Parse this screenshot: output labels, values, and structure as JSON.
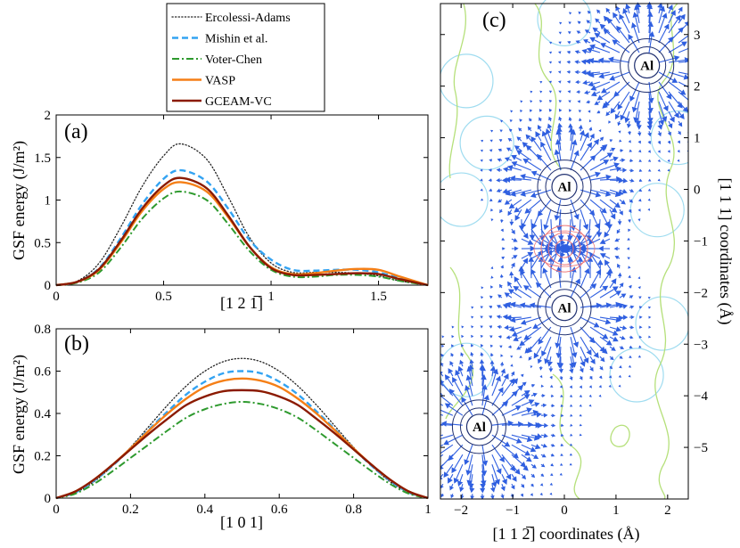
{
  "colors": {
    "ercolessi": "#222222",
    "mishin": "#33a3f2",
    "voter": "#2e9a2e",
    "vasp": "#f57f17",
    "gceam": "#8b1a00",
    "arrow": "#2f5fe0",
    "contour_green": "#b5e07a",
    "contour_cyan": "#9fdcf0",
    "contour_red": "#ee7777",
    "ring": "#203070"
  },
  "legend": {
    "entries": [
      {
        "key": "ercolessi",
        "label": "Ercolessi-Adams",
        "style": "dotted"
      },
      {
        "key": "mishin",
        "label": "Mishin et al.",
        "style": "dashed"
      },
      {
        "key": "voter",
        "label": "Voter-Chen",
        "style": "dashdot"
      },
      {
        "key": "vasp",
        "label": "VASP",
        "style": "solid"
      },
      {
        "key": "gceam",
        "label": "GCEAM-VC",
        "style": "solid"
      }
    ]
  },
  "chart_data": [
    {
      "panel": "(a)",
      "type": "line",
      "xlabel": "[1 2 1̅]",
      "ylabel": "GSF energy (J/m²)",
      "xlim": [
        0,
        1.73
      ],
      "ylim": [
        0,
        2
      ],
      "xticks": [
        0,
        0.5,
        1,
        1.5
      ],
      "xtick_labels": [
        "0",
        "0.5",
        "1",
        "1.5"
      ],
      "yticks": [
        0,
        0.5,
        1,
        1.5,
        2
      ],
      "ytick_labels": [
        "0",
        "0.5",
        "1",
        "1.5",
        "2"
      ],
      "x": [
        0,
        0.1,
        0.2,
        0.3,
        0.4,
        0.5,
        0.58,
        0.7,
        0.8,
        0.9,
        1.0,
        1.1,
        1.2,
        1.3,
        1.4,
        1.5,
        1.6,
        1.73
      ],
      "series": [
        {
          "name": "Ercolessi-Adams",
          "key": "ercolessi",
          "values": [
            0,
            0.05,
            0.26,
            0.68,
            1.16,
            1.52,
            1.66,
            1.48,
            1.04,
            0.56,
            0.26,
            0.15,
            0.15,
            0.15,
            0.14,
            0.11,
            0.05,
            0
          ]
        },
        {
          "name": "Mishin et al.",
          "key": "mishin",
          "values": [
            0,
            0.04,
            0.2,
            0.55,
            0.95,
            1.25,
            1.35,
            1.22,
            0.9,
            0.53,
            0.3,
            0.18,
            0.17,
            0.18,
            0.18,
            0.15,
            0.08,
            0
          ]
        },
        {
          "name": "Voter-Chen",
          "key": "voter",
          "values": [
            0,
            0.03,
            0.15,
            0.44,
            0.78,
            1.02,
            1.1,
            1.0,
            0.72,
            0.4,
            0.18,
            0.1,
            0.1,
            0.12,
            0.12,
            0.1,
            0.05,
            0
          ]
        },
        {
          "name": "VASP",
          "key": "vasp",
          "values": [
            0,
            0.04,
            0.18,
            0.5,
            0.87,
            1.13,
            1.21,
            1.1,
            0.8,
            0.45,
            0.21,
            0.13,
            0.14,
            0.17,
            0.19,
            0.18,
            0.1,
            0
          ]
        },
        {
          "name": "GCEAM-VC",
          "key": "gceam",
          "values": [
            0,
            0.04,
            0.19,
            0.52,
            0.9,
            1.17,
            1.26,
            1.14,
            0.82,
            0.45,
            0.2,
            0.12,
            0.12,
            0.13,
            0.14,
            0.13,
            0.07,
            0
          ]
        }
      ]
    },
    {
      "panel": "(b)",
      "type": "line",
      "xlabel": "[1 0 1]",
      "ylabel": "GSF energy (J/m²)",
      "xlim": [
        0,
        1
      ],
      "ylim": [
        0,
        0.8
      ],
      "xticks": [
        0,
        0.2,
        0.4,
        0.6,
        0.8,
        1
      ],
      "xtick_labels": [
        "0",
        "0.2",
        "0.4",
        "0.6",
        "0.8",
        "1"
      ],
      "yticks": [
        0,
        0.2,
        0.4,
        0.6,
        0.8
      ],
      "ytick_labels": [
        "0",
        "0.2",
        "0.4",
        "0.6",
        "0.8"
      ],
      "x": [
        0,
        0.05,
        0.1,
        0.15,
        0.2,
        0.25,
        0.3,
        0.35,
        0.4,
        0.45,
        0.5,
        0.55,
        0.6,
        0.65,
        0.7,
        0.75,
        0.8,
        0.85,
        0.9,
        0.95,
        1.0
      ],
      "series": [
        {
          "name": "Ercolessi-Adams",
          "key": "ercolessi",
          "values": [
            0,
            0.025,
            0.075,
            0.15,
            0.24,
            0.34,
            0.44,
            0.53,
            0.6,
            0.645,
            0.66,
            0.645,
            0.6,
            0.53,
            0.44,
            0.34,
            0.24,
            0.15,
            0.075,
            0.025,
            0
          ]
        },
        {
          "name": "Mishin et al.",
          "key": "mishin",
          "values": [
            0,
            0.025,
            0.08,
            0.15,
            0.235,
            0.325,
            0.41,
            0.49,
            0.55,
            0.59,
            0.6,
            0.59,
            0.55,
            0.49,
            0.41,
            0.325,
            0.235,
            0.15,
            0.08,
            0.025,
            0
          ]
        },
        {
          "name": "Voter-Chen",
          "key": "voter",
          "values": [
            0,
            0.02,
            0.065,
            0.125,
            0.19,
            0.255,
            0.32,
            0.38,
            0.42,
            0.445,
            0.455,
            0.445,
            0.42,
            0.38,
            0.32,
            0.255,
            0.19,
            0.125,
            0.065,
            0.02,
            0
          ]
        },
        {
          "name": "VASP",
          "key": "vasp",
          "values": [
            0,
            0.03,
            0.085,
            0.155,
            0.235,
            0.32,
            0.4,
            0.47,
            0.525,
            0.555,
            0.565,
            0.555,
            0.525,
            0.47,
            0.4,
            0.32,
            0.235,
            0.155,
            0.085,
            0.03,
            0
          ]
        },
        {
          "name": "GCEAM-VC",
          "key": "gceam",
          "values": [
            0,
            0.03,
            0.085,
            0.155,
            0.23,
            0.305,
            0.375,
            0.44,
            0.48,
            0.505,
            0.51,
            0.505,
            0.48,
            0.44,
            0.375,
            0.305,
            0.23,
            0.155,
            0.085,
            0.03,
            0
          ]
        }
      ]
    },
    {
      "panel": "(c)",
      "type": "vector-field",
      "xlabel": "[1 1 2̅] coordinates (Å)",
      "ylabel": "[1 1 1] coordinates (Å)",
      "xlim": [
        -2.4,
        2.4
      ],
      "ylim": [
        -6.0,
        3.6
      ],
      "xticks": [
        -2,
        -1,
        0,
        1,
        2
      ],
      "xtick_labels": [
        "−2",
        "−1",
        "0",
        "1",
        "2"
      ],
      "yticks": [
        3,
        2,
        1,
        0,
        -1,
        -2,
        -3,
        -4,
        -5
      ],
      "ytick_labels": [
        "3",
        "2",
        "1",
        "0",
        "−1",
        "−2",
        "−3",
        "−4",
        "−5"
      ],
      "atoms": [
        {
          "label": "Al",
          "x": 1.6,
          "y": 2.4
        },
        {
          "label": "Al",
          "x": 0.0,
          "y": 0.05
        },
        {
          "label": "Al",
          "x": 0.0,
          "y": -2.3
        },
        {
          "label": "Al",
          "x": -1.65,
          "y": -4.6
        }
      ],
      "interstitial_center": {
        "x": 0.0,
        "y": -1.15
      }
    }
  ]
}
